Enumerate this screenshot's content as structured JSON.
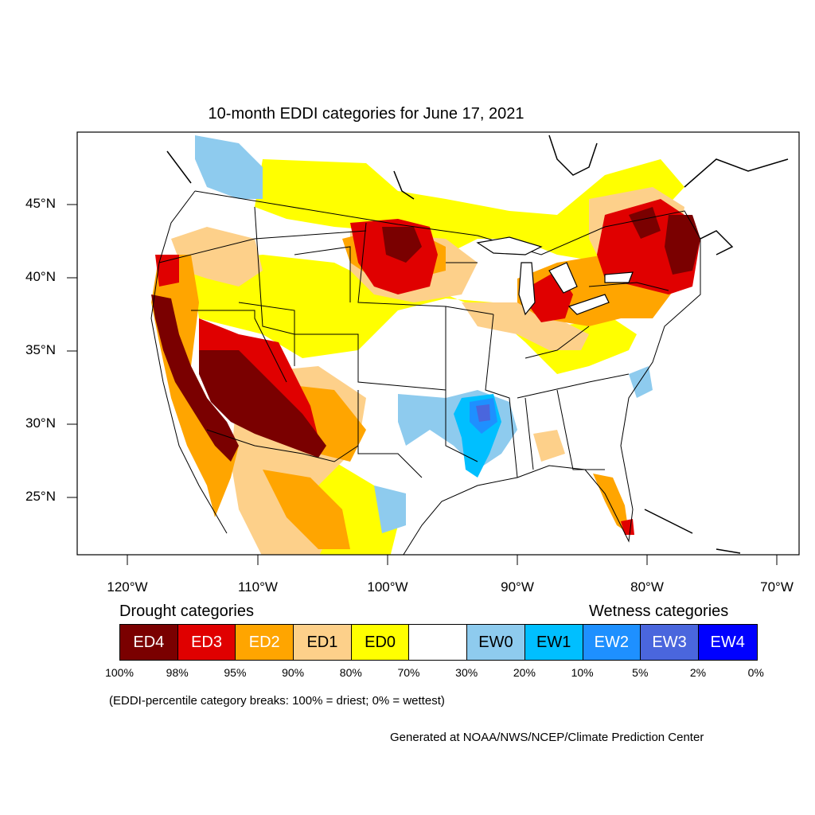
{
  "title": "10-month EDDI categories for June 17, 2021",
  "lat_labels": [
    "45°N",
    "40°N",
    "35°N",
    "30°N",
    "25°N"
  ],
  "lon_labels": [
    "120°W",
    "110°W",
    "100°W",
    "90°W",
    "80°W",
    "70°W"
  ],
  "legend": {
    "drought_title": "Drought categories",
    "wetness_title": "Wetness categories",
    "categories": [
      {
        "label": "ED4",
        "color": "#7a0000",
        "text_color": "#ffffff"
      },
      {
        "label": "ED3",
        "color": "#e00000",
        "text_color": "#ffffff"
      },
      {
        "label": "ED2",
        "color": "#ffa500",
        "text_color": "#ffffff"
      },
      {
        "label": "ED1",
        "color": "#fdd08a",
        "text_color": "#000000"
      },
      {
        "label": "ED0",
        "color": "#ffff00",
        "text_color": "#000000"
      },
      {
        "label": "",
        "color": "#ffffff",
        "text_color": "#000000"
      },
      {
        "label": "EW0",
        "color": "#8ecbee",
        "text_color": "#000000"
      },
      {
        "label": "EW1",
        "color": "#00bfff",
        "text_color": "#000000"
      },
      {
        "label": "EW2",
        "color": "#1e90ff",
        "text_color": "#ffffff"
      },
      {
        "label": "EW3",
        "color": "#4a66dd",
        "text_color": "#ffffff"
      },
      {
        "label": "EW4",
        "color": "#0000ff",
        "text_color": "#ffffff"
      }
    ],
    "breaks": [
      "100%",
      "98%",
      "95%",
      "90%",
      "80%",
      "70%",
      "30%",
      "20%",
      "10%",
      "5%",
      "2%",
      "0%"
    ],
    "note": "(EDDI-percentile category breaks: 100% = driest; 0% = wettest)"
  },
  "credit": "Generated at NOAA/NWS/NCEP/Climate Prediction Center"
}
